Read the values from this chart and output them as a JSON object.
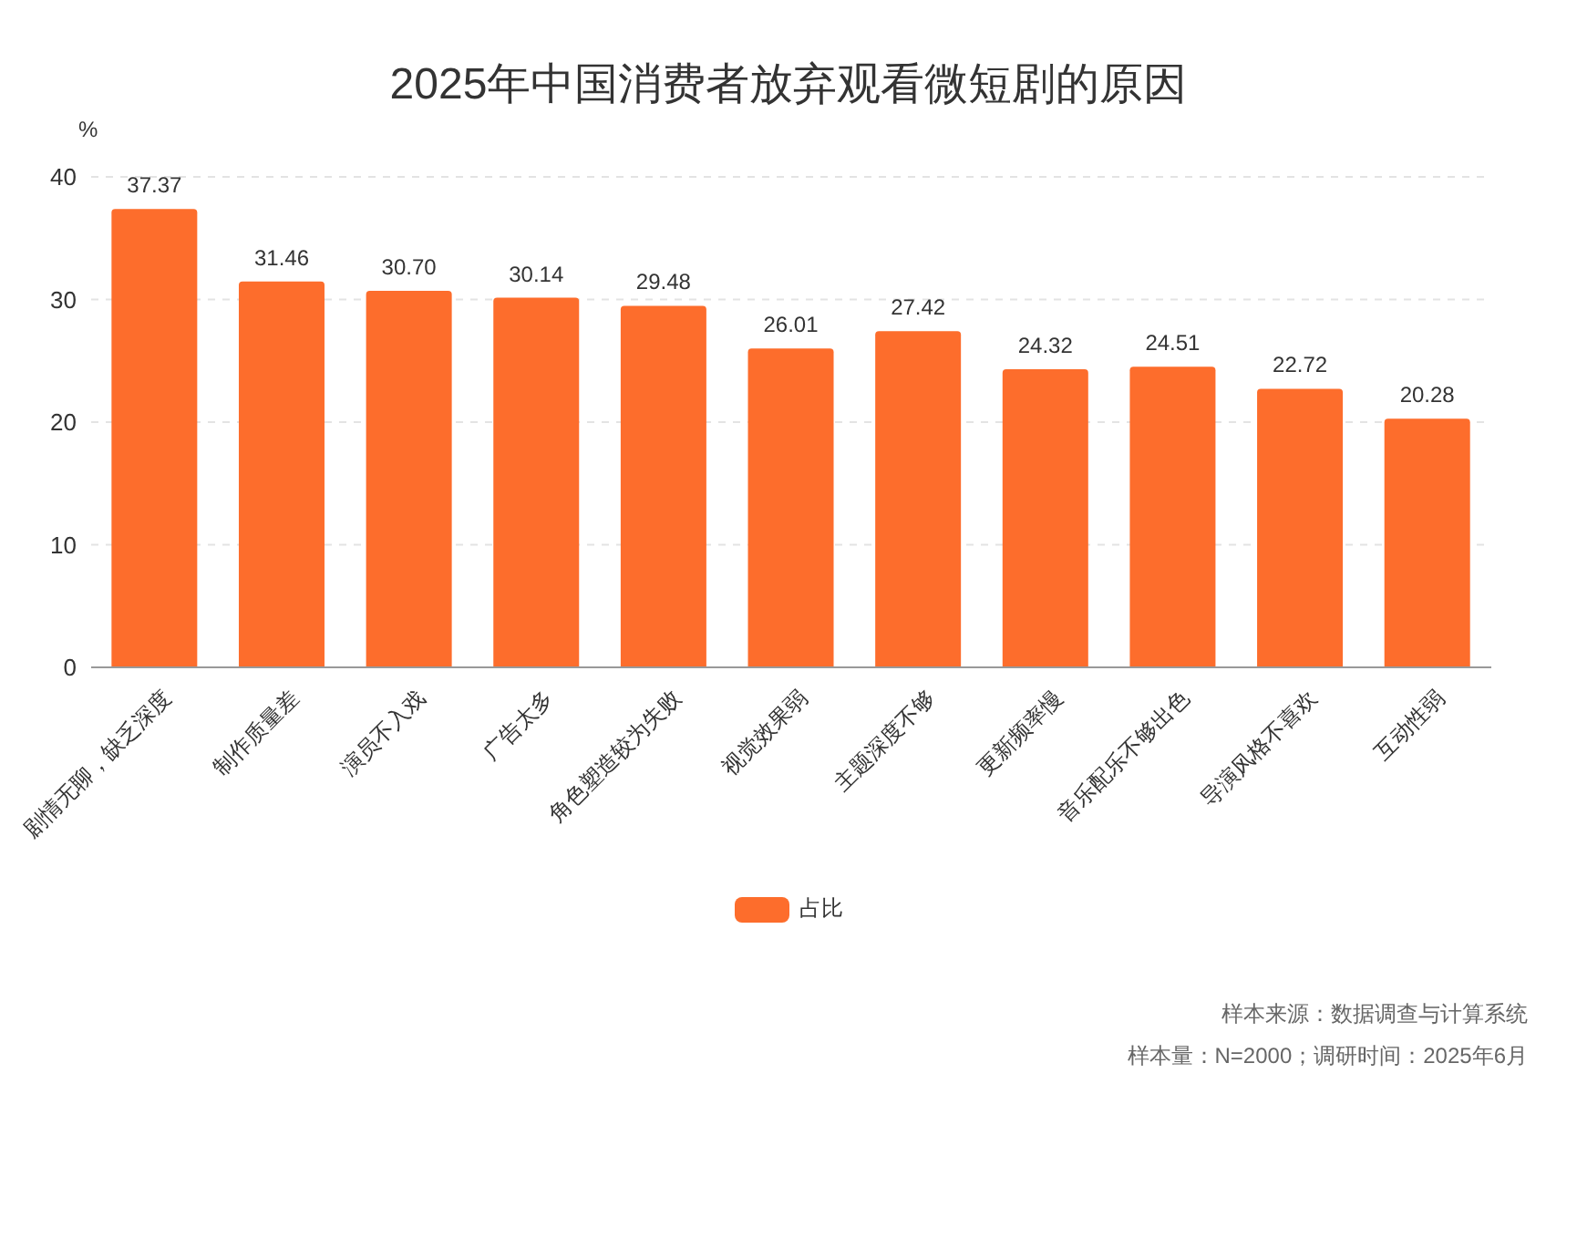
{
  "chart_data": {
    "type": "bar",
    "title": "2025年中国消费者放弃观看微短剧的原因",
    "ylabel": "%",
    "categories": [
      "剧情无聊，缺乏深度",
      "制作质量差",
      "演员不入戏",
      "广告太多",
      "角色塑造较为失败",
      "视觉效果弱",
      "主题深度不够",
      "更新频率慢",
      "音乐配乐不够出色",
      "导演风格不喜欢",
      "互动性弱"
    ],
    "series": [
      {
        "name": "占比",
        "color": "#fd6d2c",
        "values": [
          37.37,
          31.46,
          30.7,
          30.14,
          29.48,
          26.01,
          27.42,
          24.32,
          24.51,
          22.72,
          20.28
        ],
        "value_labels": [
          "37.37",
          "31.46",
          "30.70",
          "30.14",
          "29.48",
          "26.01",
          "27.42",
          "24.32",
          "24.51",
          "22.72",
          "20.28"
        ]
      }
    ],
    "ylim": [
      0,
      40
    ],
    "yticks": [
      0,
      10,
      20,
      30,
      40
    ],
    "grid": "y",
    "legend": "bottom",
    "annotations": [
      "样本来源：数据调查与计算系统",
      "样本量：N=2000；调研时间：2025年6月"
    ]
  }
}
